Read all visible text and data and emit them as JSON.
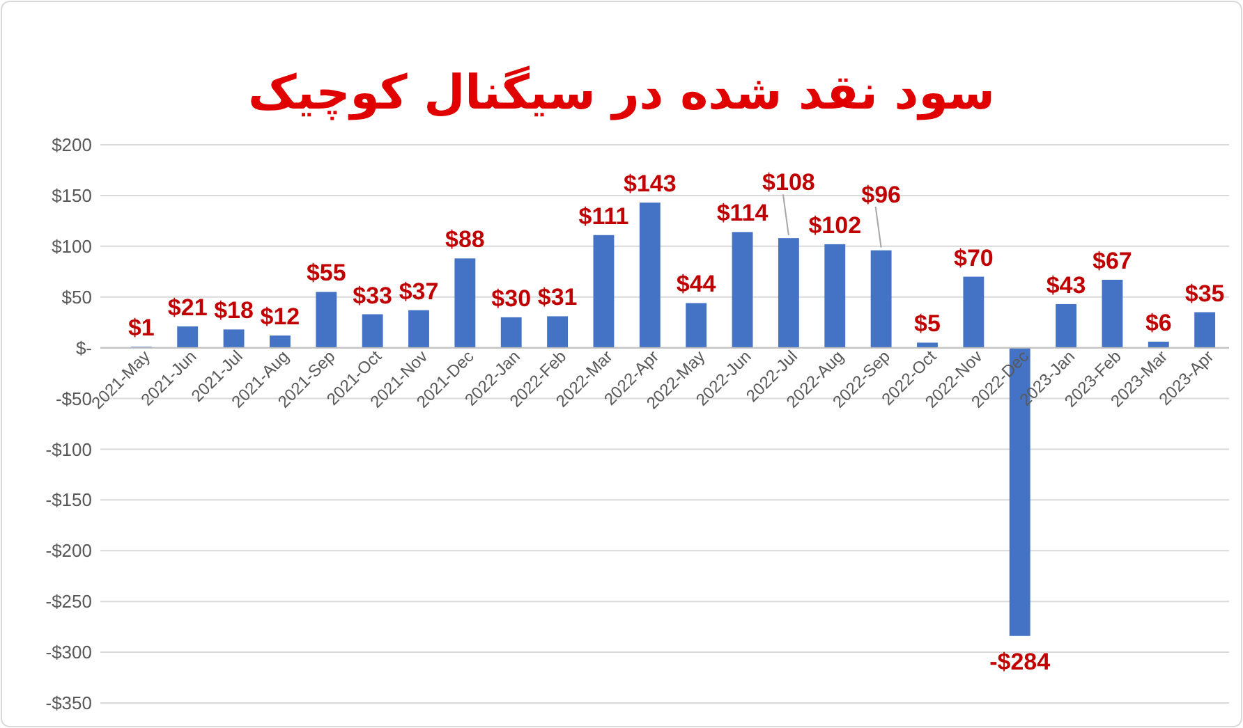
{
  "chart_data": {
    "type": "bar",
    "title": "سود نقد شده در سیگنال کوچیک",
    "categories": [
      "2021-May",
      "2021-Jun",
      "2021-Jul",
      "2021-Aug",
      "2021-Sep",
      "2021-Oct",
      "2021-Nov",
      "2021-Dec",
      "2022-Jan",
      "2022-Feb",
      "2022-Mar",
      "2022-Apr",
      "2022-May",
      "2022-Jun",
      "2022-Jul",
      "2022-Aug",
      "2022-Sep",
      "2022-Oct",
      "2022-Nov",
      "2022-Dec",
      "2023-Jan",
      "2023-Feb",
      "2023-Mar",
      "2023-Apr"
    ],
    "values": [
      1,
      21,
      18,
      12,
      55,
      33,
      37,
      88,
      30,
      31,
      111,
      143,
      44,
      114,
      108,
      102,
      96,
      5,
      70,
      -284,
      43,
      67,
      6,
      35
    ],
    "value_labels": [
      "$1",
      "$21",
      "$18",
      "$12",
      "$55",
      "$33",
      "$37",
      "$88",
      "$30",
      "$31",
      "$111",
      "$143",
      "$44",
      "$114",
      "$108",
      "$102",
      "$96",
      "$5",
      "$70",
      "-$284",
      "$43",
      "$67",
      "$6",
      "$35"
    ],
    "color": "#4472c4",
    "ylim": [
      -350,
      200
    ],
    "yticks": [
      {
        "value": -350,
        "label": "-$350"
      },
      {
        "value": -300,
        "label": "-$300"
      },
      {
        "value": -250,
        "label": "-$250"
      },
      {
        "value": -200,
        "label": "-$200"
      },
      {
        "value": -150,
        "label": "-$150"
      },
      {
        "value": -100,
        "label": "-$100"
      },
      {
        "value": -50,
        "label": "-$50"
      },
      {
        "value": 0,
        "label": "$-"
      },
      {
        "value": 50,
        "label": "$50"
      },
      {
        "value": 100,
        "label": "$100"
      },
      {
        "value": 150,
        "label": "$150"
      },
      {
        "value": 200,
        "label": "$200"
      }
    ],
    "grid": "y"
  }
}
